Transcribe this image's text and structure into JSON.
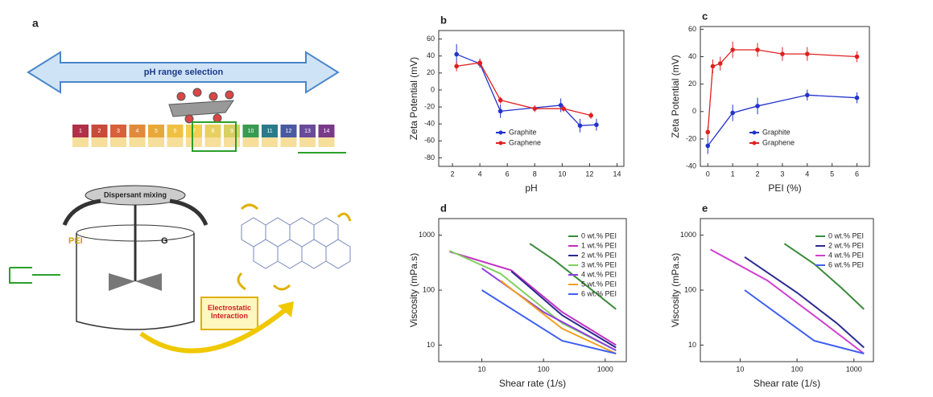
{
  "diagram": {
    "panel_label": "a",
    "arrow_label": "pH range selection",
    "ph_scale": [
      "1",
      "2",
      "3",
      "4",
      "5",
      "6",
      "7",
      "8",
      "9",
      "10",
      "11",
      "12",
      "13",
      "14"
    ],
    "mixing_label": "Dispersant mixing",
    "pei_label": "PEI",
    "g_label": "G",
    "interaction_label": "Electrostatic Interaction"
  },
  "chart_data": [
    {
      "type": "line",
      "panel_label": "b",
      "x_label": "pH",
      "y_label": "Zeta Potential (mV)",
      "xlim": [
        1,
        14.5
      ],
      "ylim": [
        -90,
        70
      ],
      "xticks": [
        2,
        4,
        6,
        8,
        10,
        12,
        14
      ],
      "yticks": [
        -80,
        -60,
        -40,
        -20,
        0,
        20,
        40,
        60
      ],
      "markers": true,
      "legend": "lower center",
      "series": [
        {
          "name": "Graphite",
          "color": "#2233cc",
          "x": [
            2.3,
            4,
            5.5,
            9.9,
            11.3,
            12.5
          ],
          "values": [
            42,
            31,
            -25,
            -18,
            -42,
            -41
          ],
          "errors": [
            12,
            5,
            8,
            8,
            8,
            7
          ]
        },
        {
          "name": "Graphene",
          "color": "#e02020",
          "x": [
            2.3,
            4,
            5.5,
            8,
            10.1,
            12.1
          ],
          "values": [
            28,
            32,
            -12,
            -22,
            -22,
            -30
          ],
          "errors": [
            6,
            5,
            4,
            4,
            4,
            4
          ]
        }
      ]
    },
    {
      "type": "line",
      "panel_label": "c",
      "x_label": "PEI (%)",
      "y_label": "Zeta Potential (mV)",
      "xlim": [
        -0.3,
        6.5
      ],
      "ylim": [
        -40,
        62
      ],
      "xticks": [
        0,
        1,
        2,
        3,
        4,
        5,
        6
      ],
      "yticks": [
        -40,
        -20,
        0,
        20,
        40,
        60
      ],
      "markers": true,
      "legend": "lower center",
      "series": [
        {
          "name": "Graphite",
          "color": "#2233cc",
          "x": [
            0,
            1,
            2,
            4,
            6
          ],
          "values": [
            -25,
            -1,
            4,
            12,
            10
          ],
          "errors": [
            6,
            6,
            6,
            4,
            4
          ]
        },
        {
          "name": "Graphene",
          "color": "#e02020",
          "x": [
            0,
            0.2,
            0.5,
            1,
            2,
            3,
            4,
            6
          ],
          "values": [
            -15,
            33,
            35,
            45,
            45,
            42,
            42,
            40
          ],
          "errors": [
            4,
            5,
            5,
            6,
            5,
            5,
            5,
            4
          ]
        }
      ]
    },
    {
      "type": "line",
      "panel_label": "d",
      "x_label": "Shear rate (1/s)",
      "y_label": "Viscosity (mPa.s)",
      "xscale": "log",
      "yscale": "log",
      "xlim": [
        2,
        2200
      ],
      "ylim": [
        5,
        2000
      ],
      "xticks": [
        10,
        100,
        1000
      ],
      "yticks": [
        10,
        100,
        1000
      ],
      "markers": false,
      "legend": "upper right",
      "series": [
        {
          "name": "0 wt.% PEI",
          "color": "#3a8a3a",
          "x": [
            60,
            150,
            500,
            1500
          ],
          "values": [
            700,
            350,
            120,
            45
          ]
        },
        {
          "name": "1 wt.% PEI",
          "color": "#c030c0",
          "x": [
            3,
            30,
            200,
            1500
          ],
          "values": [
            500,
            230,
            40,
            10
          ]
        },
        {
          "name": "2 wt.% PEI",
          "color": "#2a2a90",
          "x": [
            30,
            200,
            1500
          ],
          "values": [
            220,
            35,
            9
          ]
        },
        {
          "name": "3 wt.% PEI",
          "color": "#80d060",
          "x": [
            3,
            20,
            200,
            1500
          ],
          "values": [
            520,
            200,
            25,
            8
          ]
        },
        {
          "name": "4 wt.% PEI",
          "color": "#9040e0",
          "x": [
            10,
            100,
            1500
          ],
          "values": [
            250,
            40,
            8
          ]
        },
        {
          "name": "5 wt.% PEI",
          "color": "#f0a020",
          "x": [
            20,
            200,
            1500
          ],
          "values": [
            150,
            20,
            7
          ]
        },
        {
          "name": "6 wt.% PEI",
          "color": "#4060f0",
          "x": [
            10,
            200,
            1500
          ],
          "values": [
            100,
            12,
            7
          ]
        }
      ]
    },
    {
      "type": "line",
      "panel_label": "e",
      "x_label": "Shear rate (1/s)",
      "y_label": "Viscosity (mPa.s)",
      "xscale": "log",
      "yscale": "log",
      "xlim": [
        2,
        2200
      ],
      "ylim": [
        5,
        2000
      ],
      "xticks": [
        10,
        100,
        1000
      ],
      "yticks": [
        10,
        100,
        1000
      ],
      "markers": false,
      "legend": "upper right",
      "series": [
        {
          "name": "0 wt.% PEI",
          "color": "#3a8a3a",
          "x": [
            60,
            200,
            600,
            1500
          ],
          "values": [
            700,
            300,
            110,
            45
          ]
        },
        {
          "name": "2 wt.% PEI",
          "color": "#2a2a90",
          "x": [
            12,
            100,
            500,
            1500
          ],
          "values": [
            400,
            90,
            25,
            9
          ]
        },
        {
          "name": "4 wt.% PEI",
          "color": "#d040d0",
          "x": [
            3,
            30,
            300,
            1500
          ],
          "values": [
            550,
            150,
            25,
            7
          ]
        },
        {
          "name": "6 wt.% PEI",
          "color": "#4060f0",
          "x": [
            12,
            200,
            1500
          ],
          "values": [
            100,
            12,
            7
          ]
        }
      ]
    }
  ]
}
